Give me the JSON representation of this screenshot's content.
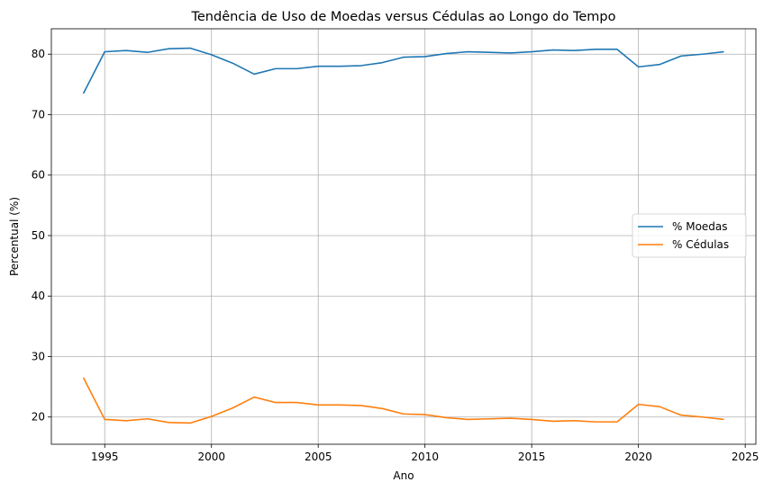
{
  "chart_data": {
    "type": "line",
    "title": "Tendência de Uso de Moedas versus Cédulas ao Longo do Tempo",
    "xlabel": "Ano",
    "ylabel": "Percentual (%)",
    "xlim": [
      1992.5,
      2025.5
    ],
    "ylim": [
      15.5,
      84.2
    ],
    "xticks": [
      1995,
      2000,
      2005,
      2010,
      2015,
      2020,
      2025
    ],
    "yticks": [
      20,
      30,
      40,
      50,
      60,
      70,
      80
    ],
    "grid": true,
    "legend_position": "center-right",
    "x": [
      1994,
      1995,
      1996,
      1997,
      1998,
      1999,
      2000,
      2001,
      2002,
      2003,
      2004,
      2005,
      2006,
      2007,
      2008,
      2009,
      2010,
      2011,
      2012,
      2013,
      2014,
      2015,
      2016,
      2017,
      2018,
      2019,
      2020,
      2021,
      2022,
      2023,
      2024
    ],
    "series": [
      {
        "name": "% Moedas",
        "color": "#1f77b4",
        "values": [
          73.5,
          80.4,
          80.6,
          80.3,
          80.9,
          81.0,
          79.9,
          78.5,
          76.7,
          77.6,
          77.6,
          78.0,
          78.0,
          78.1,
          78.6,
          79.5,
          79.6,
          80.1,
          80.4,
          80.3,
          80.2,
          80.4,
          80.7,
          80.6,
          80.8,
          80.8,
          77.9,
          78.3,
          79.7,
          80.0,
          80.4
        ]
      },
      {
        "name": "% Cédulas",
        "color": "#ff7f0e",
        "values": [
          26.5,
          19.6,
          19.4,
          19.7,
          19.1,
          19.0,
          20.1,
          21.5,
          23.3,
          22.4,
          22.4,
          22.0,
          22.0,
          21.9,
          21.4,
          20.5,
          20.4,
          19.9,
          19.6,
          19.7,
          19.8,
          19.6,
          19.3,
          19.4,
          19.2,
          19.2,
          22.1,
          21.7,
          20.3,
          20.0,
          19.6
        ]
      }
    ]
  }
}
